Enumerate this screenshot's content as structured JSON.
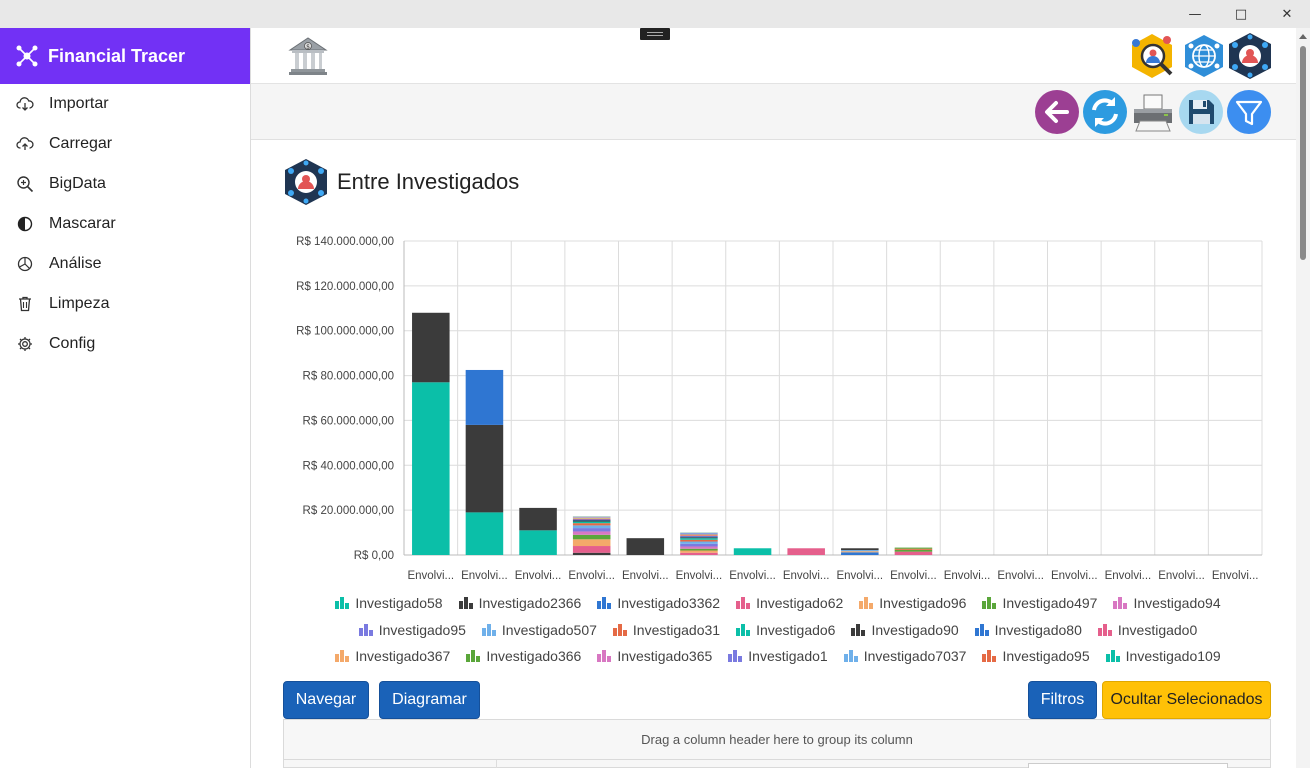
{
  "app": {
    "title": "Financial Tracer"
  },
  "sidebar": {
    "items": [
      {
        "label": "Importar",
        "icon": "cloud-download-icon"
      },
      {
        "label": "Carregar",
        "icon": "cloud-upload-icon"
      },
      {
        "label": "BigData",
        "icon": "zoom-icon"
      },
      {
        "label": "Mascarar",
        "icon": "contrast-icon"
      },
      {
        "label": "Análise",
        "icon": "pie-chart-icon"
      },
      {
        "label": "Limpeza",
        "icon": "trash-icon"
      },
      {
        "label": "Config",
        "icon": "gear-icon"
      }
    ]
  },
  "page": {
    "title": "Entre Investigados"
  },
  "buttons": {
    "navegar": "Navegar",
    "diagramar": "Diagramar",
    "filtros": "Filtros",
    "ocultar": "Ocultar Selecionados"
  },
  "grid": {
    "group_hint": "Drag a column header here to group its column"
  },
  "colors": {
    "accent": "#7231f5",
    "primary_button": "#1a62b8",
    "warning_button": "#ffc107"
  },
  "chart_data": {
    "type": "bar",
    "stacked": true,
    "ylim": [
      0,
      140000000
    ],
    "y_ticks": [
      "R$ 0,00",
      "R$ 20.000.000,00",
      "R$ 40.000.000,00",
      "R$ 60.000.000,00",
      "R$ 80.000.000,00",
      "R$ 100.000.000,00",
      "R$ 120.000.000,00",
      "R$ 140.000.000,00"
    ],
    "categories": [
      "Envolvi...",
      "Envolvi...",
      "Envolvi...",
      "Envolvi...",
      "Envolvi...",
      "Envolvi...",
      "Envolvi...",
      "Envolvi...",
      "Envolvi...",
      "Envolvi...",
      "Envolvi...",
      "Envolvi...",
      "Envolvi...",
      "Envolvi...",
      "Envolvi...",
      "Envolvi..."
    ],
    "grid": true,
    "legend_position": "bottom",
    "series": [
      {
        "name": "Investigado58",
        "color": "#0bbfa8",
        "values": [
          77000000,
          19000000,
          11000000,
          0,
          0,
          0,
          3000000,
          0,
          0,
          0,
          0,
          0,
          0,
          0,
          0,
          0
        ]
      },
      {
        "name": "Investigado2366",
        "color": "#3b3b3b",
        "values": [
          31000000,
          39000000,
          10000000,
          1000000,
          7500000,
          0,
          0,
          0,
          0,
          0,
          0,
          0,
          0,
          0,
          0,
          0
        ]
      },
      {
        "name": "Investigado3362",
        "color": "#2f76d2",
        "values": [
          0,
          24500000,
          0,
          0,
          0,
          0,
          0,
          0,
          1200000,
          0,
          0,
          0,
          0,
          0,
          0,
          0
        ]
      },
      {
        "name": "Investigado62",
        "color": "#e55f8c",
        "values": [
          0,
          0,
          0,
          3000000,
          0,
          1000000,
          0,
          3000000,
          0,
          1500000,
          0,
          0,
          0,
          0,
          0,
          0
        ]
      },
      {
        "name": "Investigado96",
        "color": "#f4a96a",
        "values": [
          0,
          0,
          0,
          3000000,
          0,
          1000000,
          0,
          0,
          500000,
          0,
          0,
          0,
          0,
          0,
          0,
          0
        ]
      },
      {
        "name": "Investigado497",
        "color": "#5aa63a",
        "values": [
          0,
          0,
          0,
          2000000,
          0,
          800000,
          0,
          0,
          0,
          800000,
          0,
          0,
          0,
          0,
          0,
          0
        ]
      },
      {
        "name": "Investigado94",
        "color": "#d877c2",
        "values": [
          0,
          0,
          0,
          1500000,
          0,
          1000000,
          0,
          0,
          0,
          0,
          0,
          0,
          0,
          0,
          0,
          0
        ]
      },
      {
        "name": "Investigado95",
        "color": "#7a7ae0",
        "values": [
          0,
          0,
          0,
          1500000,
          0,
          1200000,
          0,
          0,
          0,
          0,
          0,
          0,
          0,
          0,
          0,
          0
        ]
      },
      {
        "name": "Investigado507",
        "color": "#6fb0ea",
        "values": [
          0,
          0,
          0,
          1200000,
          0,
          1000000,
          0,
          0,
          500000,
          0,
          0,
          0,
          0,
          0,
          0,
          0
        ]
      },
      {
        "name": "Investigado31",
        "color": "#e56a45",
        "values": [
          0,
          0,
          0,
          1000000,
          0,
          800000,
          0,
          0,
          0,
          500000,
          0,
          0,
          0,
          0,
          0,
          0
        ]
      },
      {
        "name": "Investigado6",
        "color": "#0bbfa8",
        "values": [
          0,
          0,
          0,
          700000,
          0,
          700000,
          0,
          0,
          0,
          0,
          0,
          0,
          0,
          0,
          0,
          0
        ]
      },
      {
        "name": "Investigado90",
        "color": "#3b3b3b",
        "values": [
          0,
          0,
          0,
          500000,
          0,
          400000,
          0,
          0,
          800000,
          0,
          0,
          0,
          0,
          0,
          0,
          0
        ]
      },
      {
        "name": "Investigado80",
        "color": "#2f76d2",
        "values": [
          0,
          0,
          0,
          400000,
          0,
          500000,
          0,
          0,
          0,
          0,
          0,
          0,
          0,
          0,
          0,
          0
        ]
      },
      {
        "name": "Investigado0",
        "color": "#e55f8c",
        "values": [
          0,
          0,
          0,
          300000,
          0,
          300000,
          0,
          0,
          0,
          0,
          0,
          0,
          0,
          0,
          0,
          0
        ]
      },
      {
        "name": "Investigado367",
        "color": "#f4a96a",
        "values": [
          0,
          0,
          0,
          300000,
          0,
          300000,
          0,
          0,
          0,
          0,
          0,
          0,
          0,
          0,
          0,
          0
        ]
      },
      {
        "name": "Investigado366",
        "color": "#5aa63a",
        "values": [
          0,
          0,
          0,
          200000,
          0,
          200000,
          0,
          0,
          0,
          500000,
          0,
          0,
          0,
          0,
          0,
          0
        ]
      },
      {
        "name": "Investigado365",
        "color": "#d877c2",
        "values": [
          0,
          0,
          0,
          200000,
          0,
          200000,
          0,
          0,
          0,
          0,
          0,
          0,
          0,
          0,
          0,
          0
        ]
      },
      {
        "name": "Investigado1",
        "color": "#7a7ae0",
        "values": [
          0,
          0,
          0,
          100000,
          0,
          200000,
          0,
          0,
          0,
          0,
          0,
          0,
          0,
          0,
          0,
          0
        ]
      },
      {
        "name": "Investigado7037",
        "color": "#6fb0ea",
        "values": [
          0,
          0,
          0,
          100000,
          0,
          200000,
          0,
          0,
          0,
          0,
          0,
          0,
          0,
          0,
          0,
          0
        ]
      },
      {
        "name": "Investigado95",
        "color": "#e56a45",
        "values": [
          0,
          0,
          0,
          100000,
          0,
          100000,
          0,
          0,
          0,
          0,
          0,
          0,
          0,
          0,
          0,
          0
        ]
      },
      {
        "name": "Investigado109",
        "color": "#0bbfa8",
        "values": [
          0,
          0,
          0,
          100000,
          0,
          100000,
          0,
          0,
          0,
          0,
          0,
          0,
          0,
          0,
          0,
          0
        ]
      }
    ]
  }
}
